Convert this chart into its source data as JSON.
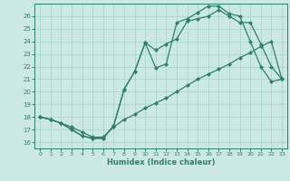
{
  "xlabel": "Humidex (Indice chaleur)",
  "bg_color": "#cce8e4",
  "grid_color": "#b0d8d0",
  "line_color": "#2d7f6e",
  "xlim": [
    -0.5,
    23.5
  ],
  "ylim": [
    15.5,
    27.0
  ],
  "xticks": [
    0,
    1,
    2,
    3,
    4,
    5,
    6,
    7,
    8,
    9,
    10,
    11,
    12,
    13,
    14,
    15,
    16,
    17,
    18,
    19,
    20,
    21,
    22,
    23
  ],
  "yticks": [
    16,
    17,
    18,
    19,
    20,
    21,
    22,
    23,
    24,
    25,
    26
  ],
  "line1_x": [
    0,
    1,
    2,
    3,
    4,
    5,
    6,
    7,
    8,
    9,
    10,
    11,
    12,
    13,
    14,
    15,
    16,
    17,
    18,
    19,
    20,
    21,
    22,
    23
  ],
  "line1_y": [
    18.0,
    17.8,
    17.5,
    17.2,
    16.8,
    16.4,
    16.4,
    17.2,
    17.8,
    18.2,
    18.7,
    19.1,
    19.5,
    20.0,
    20.5,
    21.0,
    21.4,
    21.8,
    22.2,
    22.7,
    23.1,
    23.6,
    24.0,
    21.0
  ],
  "line2_x": [
    0,
    1,
    2,
    3,
    4,
    5,
    6,
    7,
    8,
    9,
    10,
    11,
    12,
    13,
    14,
    15,
    16,
    17,
    18,
    19,
    20,
    21,
    22,
    23
  ],
  "line2_y": [
    18.0,
    17.8,
    17.5,
    17.0,
    16.5,
    16.3,
    16.3,
    17.3,
    20.2,
    21.6,
    23.9,
    23.3,
    23.8,
    24.2,
    25.6,
    25.8,
    26.0,
    26.5,
    26.0,
    25.5,
    25.5,
    23.8,
    22.0,
    21.0
  ],
  "line3_x": [
    0,
    1,
    2,
    3,
    4,
    5,
    6,
    7,
    8,
    9,
    10,
    11,
    12,
    13,
    14,
    15,
    16,
    17,
    18,
    19,
    20,
    21,
    22,
    23
  ],
  "line3_y": [
    18.0,
    17.8,
    17.5,
    17.0,
    16.5,
    16.3,
    16.3,
    17.3,
    20.2,
    21.6,
    23.9,
    21.9,
    22.2,
    25.5,
    25.8,
    26.3,
    26.8,
    26.8,
    26.2,
    26.0,
    24.0,
    22.0,
    20.8,
    21.0
  ],
  "marker_size": 2.5,
  "linewidth": 0.9
}
